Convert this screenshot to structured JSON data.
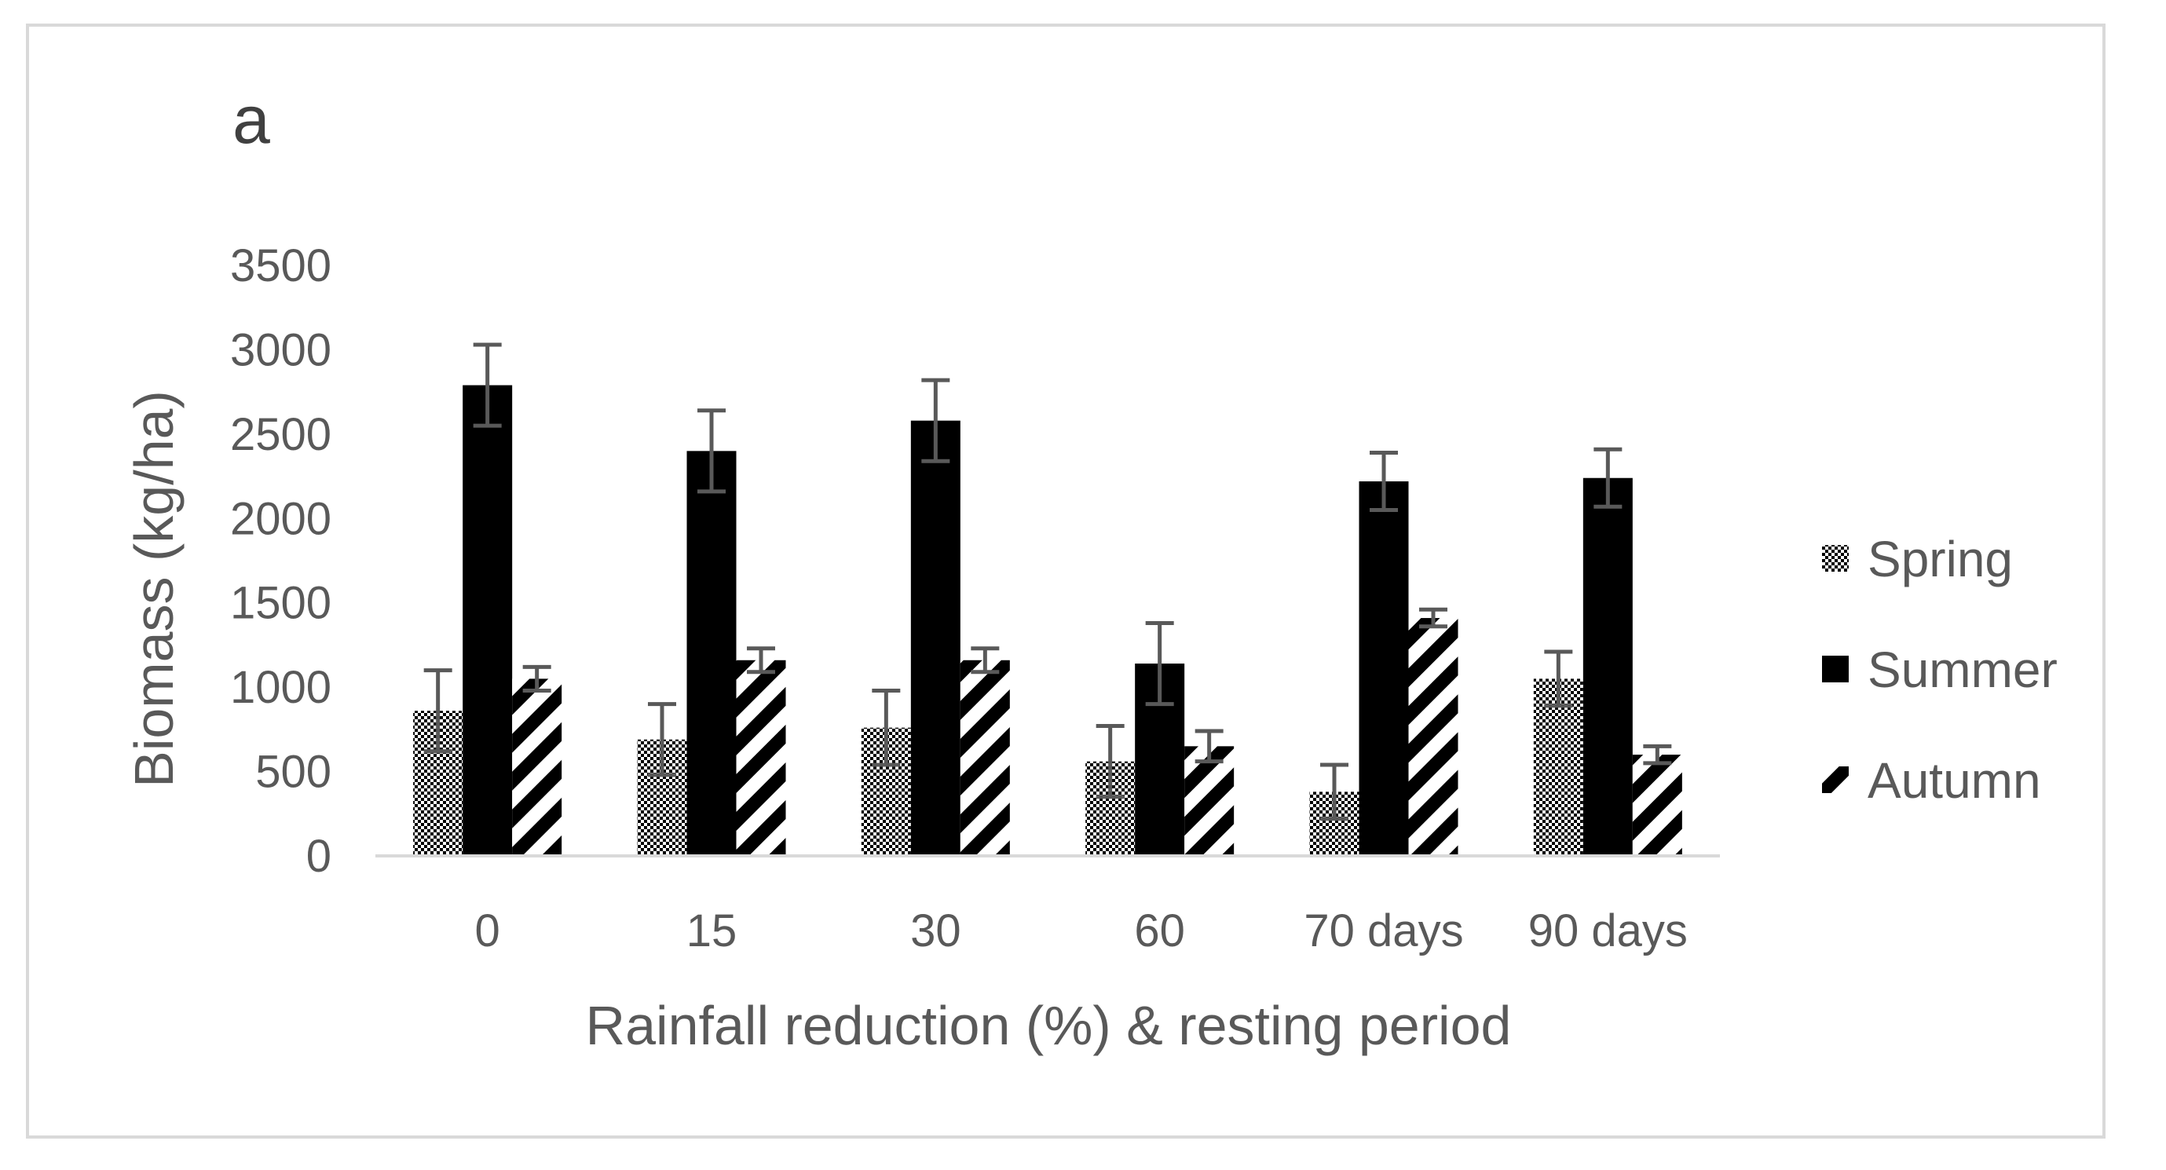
{
  "panel_label": "a",
  "chart_data": {
    "type": "bar",
    "title": "",
    "xlabel": "Rainfall reduction (%) & resting period",
    "ylabel": "Biomass (kg/ha)",
    "ylim": [
      0,
      3500
    ],
    "yticks": [
      0,
      500,
      1000,
      1500,
      2000,
      2500,
      3000,
      3500
    ],
    "grid": false,
    "legend_position": "right",
    "categories": [
      "0",
      "15",
      "30",
      "60",
      "70 days",
      "90 days"
    ],
    "series": [
      {
        "name": "Spring",
        "pattern": "checker",
        "values": [
          860,
          690,
          760,
          560,
          380,
          1050
        ],
        "errors": [
          240,
          210,
          220,
          210,
          160,
          160
        ]
      },
      {
        "name": "Summer",
        "pattern": "solid",
        "values": [
          2790,
          2400,
          2580,
          1140,
          2220,
          2240
        ],
        "errors": [
          240,
          240,
          240,
          240,
          170,
          170
        ]
      },
      {
        "name": "Autumn",
        "pattern": "diagonal",
        "values": [
          1050,
          1160,
          1160,
          650,
          1410,
          600
        ],
        "errors": [
          70,
          70,
          70,
          90,
          50,
          50
        ]
      }
    ],
    "colors": {
      "bar_fill": "#000000",
      "error_bar": "#595959",
      "axis_line": "#d9d9d9",
      "text": "#595959"
    }
  }
}
